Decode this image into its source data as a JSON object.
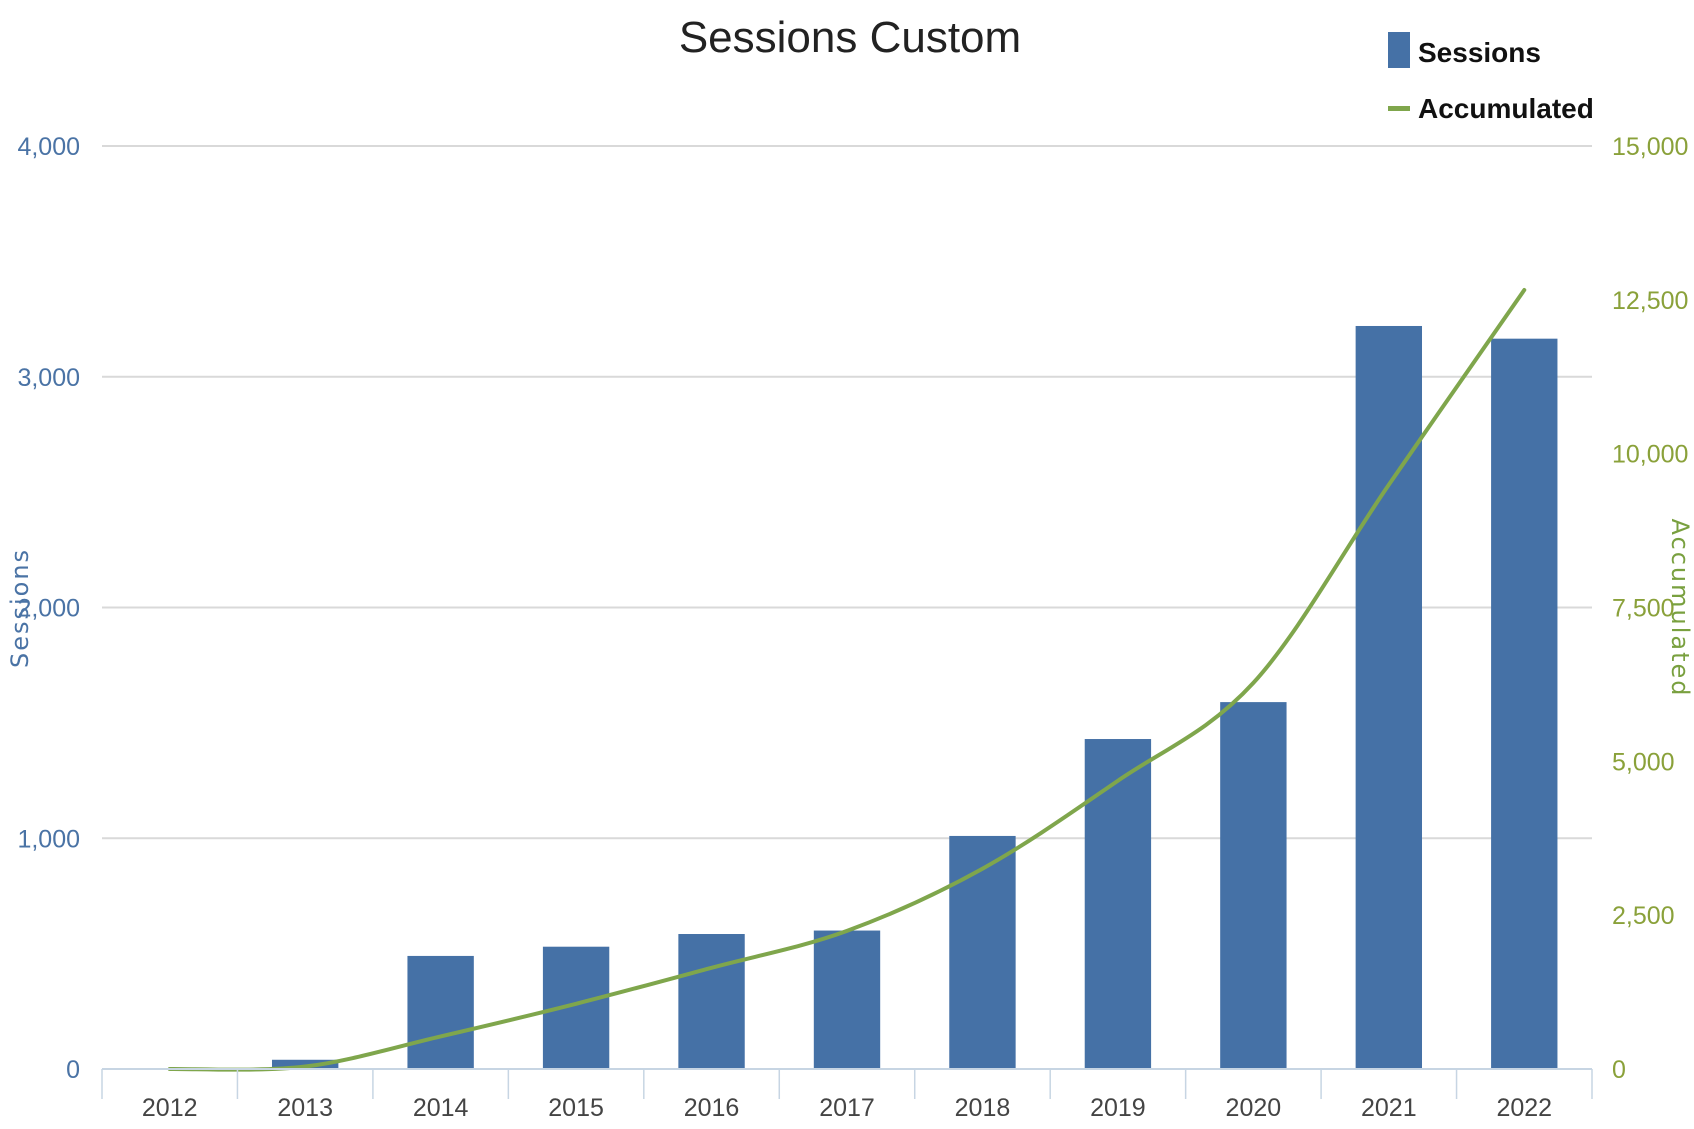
{
  "chart_data": {
    "type": "bar",
    "title": "Sessions Custom",
    "categories": [
      "2012",
      "2013",
      "2014",
      "2015",
      "2016",
      "2017",
      "2018",
      "2019",
      "2020",
      "2021",
      "2022"
    ],
    "series": [
      {
        "name": "Sessions",
        "type": "bar",
        "axis": "left",
        "color": "#4571a6",
        "values": [
          0,
          40,
          490,
          530,
          585,
          600,
          1010,
          1430,
          1590,
          3220,
          3165
        ]
      },
      {
        "name": "Accumulated",
        "type": "line",
        "axis": "right",
        "color": "#7fa64c",
        "values": [
          0,
          40,
          530,
          1060,
          1645,
          2245,
          3255,
          4685,
          6275,
          9495,
          12660
        ]
      }
    ],
    "y_left": {
      "label": "Sessions",
      "ylim": [
        0,
        4000
      ],
      "ticks": [
        0,
        1000,
        2000,
        3000,
        4000
      ],
      "tick_labels": [
        "0",
        "1,000",
        "2,000",
        "3,000",
        "4,000"
      ],
      "color": "#4a73a5"
    },
    "y_right": {
      "label": "Accumulated",
      "ylim": [
        0,
        15000
      ],
      "ticks": [
        0,
        2500,
        5000,
        7500,
        10000,
        12500,
        15000
      ],
      "tick_labels": [
        "0",
        "2,500",
        "5,000",
        "7,500",
        "10,000",
        "12,500",
        "15,000"
      ],
      "color": "#8aa13a"
    },
    "grid": true,
    "legend": "top-right"
  }
}
